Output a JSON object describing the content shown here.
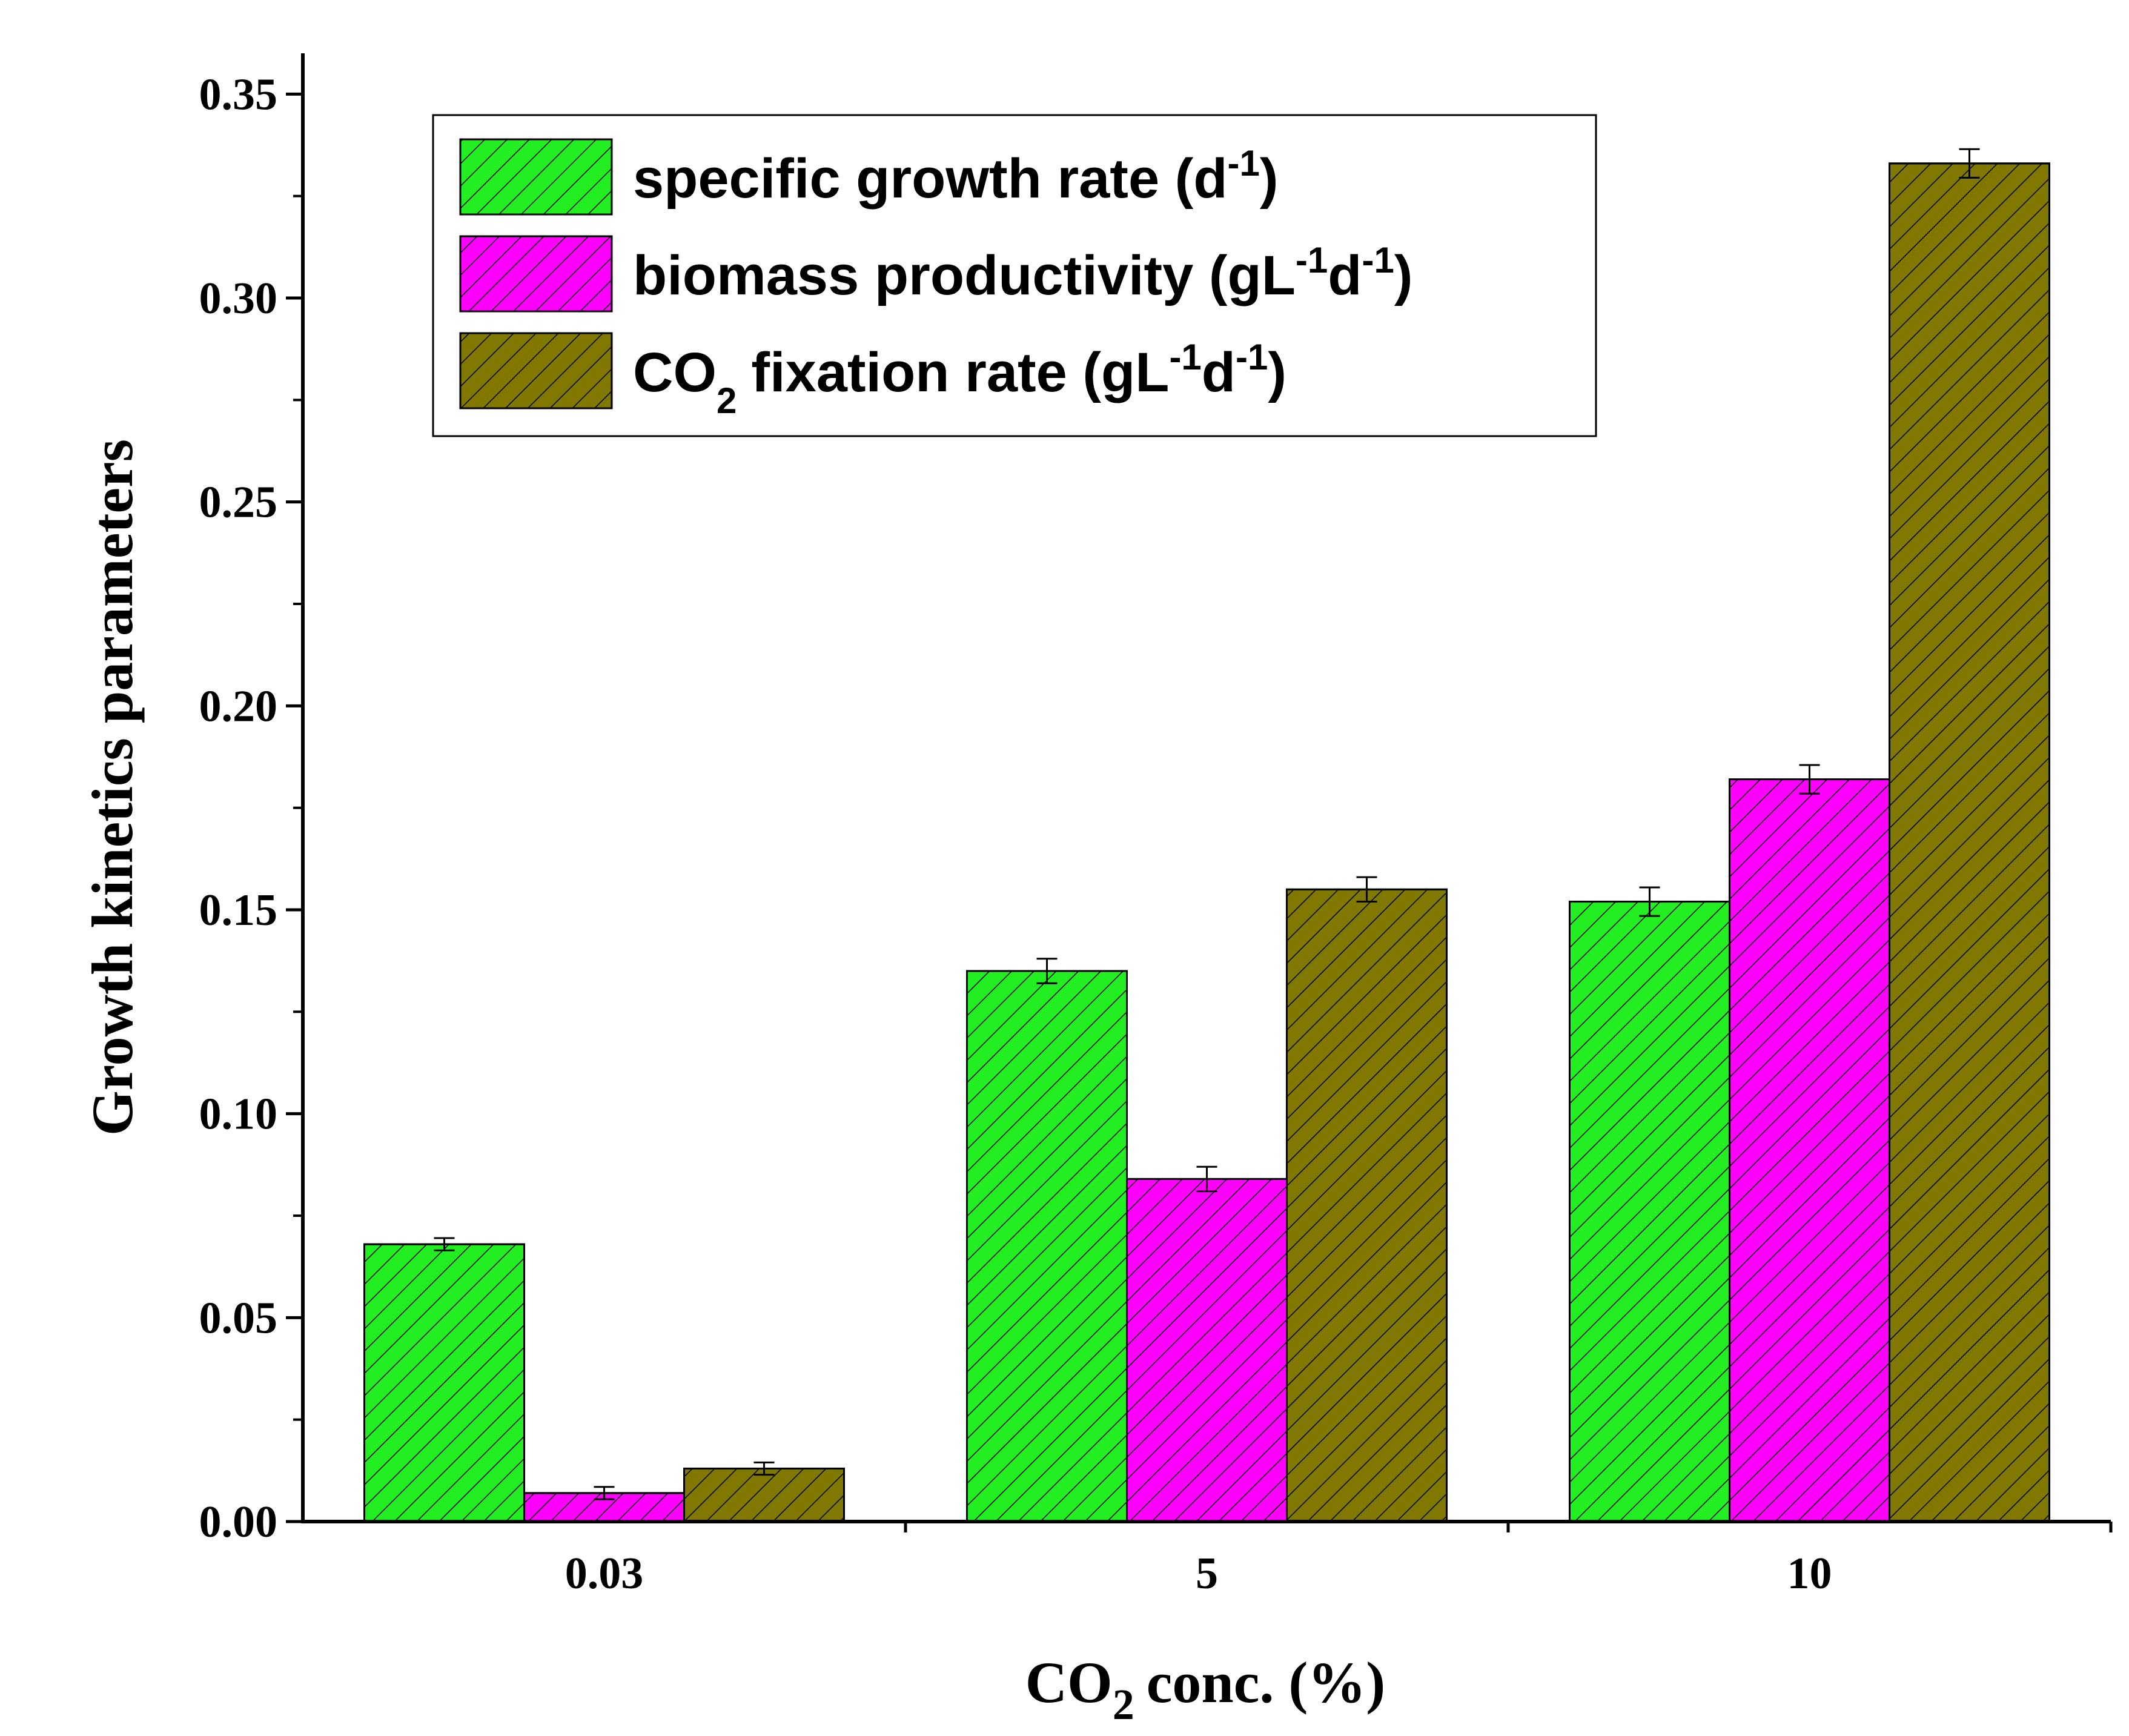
{
  "chart_data": {
    "type": "bar",
    "categories": [
      "0.03",
      "5",
      "10"
    ],
    "series": [
      {
        "name": "specific growth rate",
        "unit_base": "d",
        "unit_sup": "-1",
        "color": "#22ee22",
        "values": [
          0.068,
          0.135,
          0.152
        ],
        "errors": [
          0.0015,
          0.003,
          0.0035
        ]
      },
      {
        "name": "biomass productivity",
        "unit_base": "gL",
        "unit_sup": "-1",
        "unit_base2": "d",
        "unit_sup2": "-1",
        "color": "#ff00ff",
        "values": [
          0.007,
          0.084,
          0.182
        ],
        "errors": [
          0.0015,
          0.003,
          0.0035
        ]
      },
      {
        "name_main": "CO",
        "name_sub": "2",
        "name_rest": "fixation rate",
        "unit_base": "gL",
        "unit_sup": "-1",
        "unit_base2": "d",
        "unit_sup2": "-1",
        "color": "#807800",
        "values": [
          0.013,
          0.155,
          0.333
        ],
        "errors": [
          0.0015,
          0.003,
          0.0035
        ]
      }
    ],
    "ylabel": "Growth kinetics parameters",
    "xlabel_main": "CO",
    "xlabel_sub": "2",
    "xlabel_rest": "conc. (%)",
    "ylim": [
      0,
      0.36
    ],
    "yticks": [
      "0.00",
      "0.05",
      "0.10",
      "0.15",
      "0.20",
      "0.25",
      "0.30",
      "0.35"
    ],
    "legend_position": "top-left",
    "grid": false
  }
}
